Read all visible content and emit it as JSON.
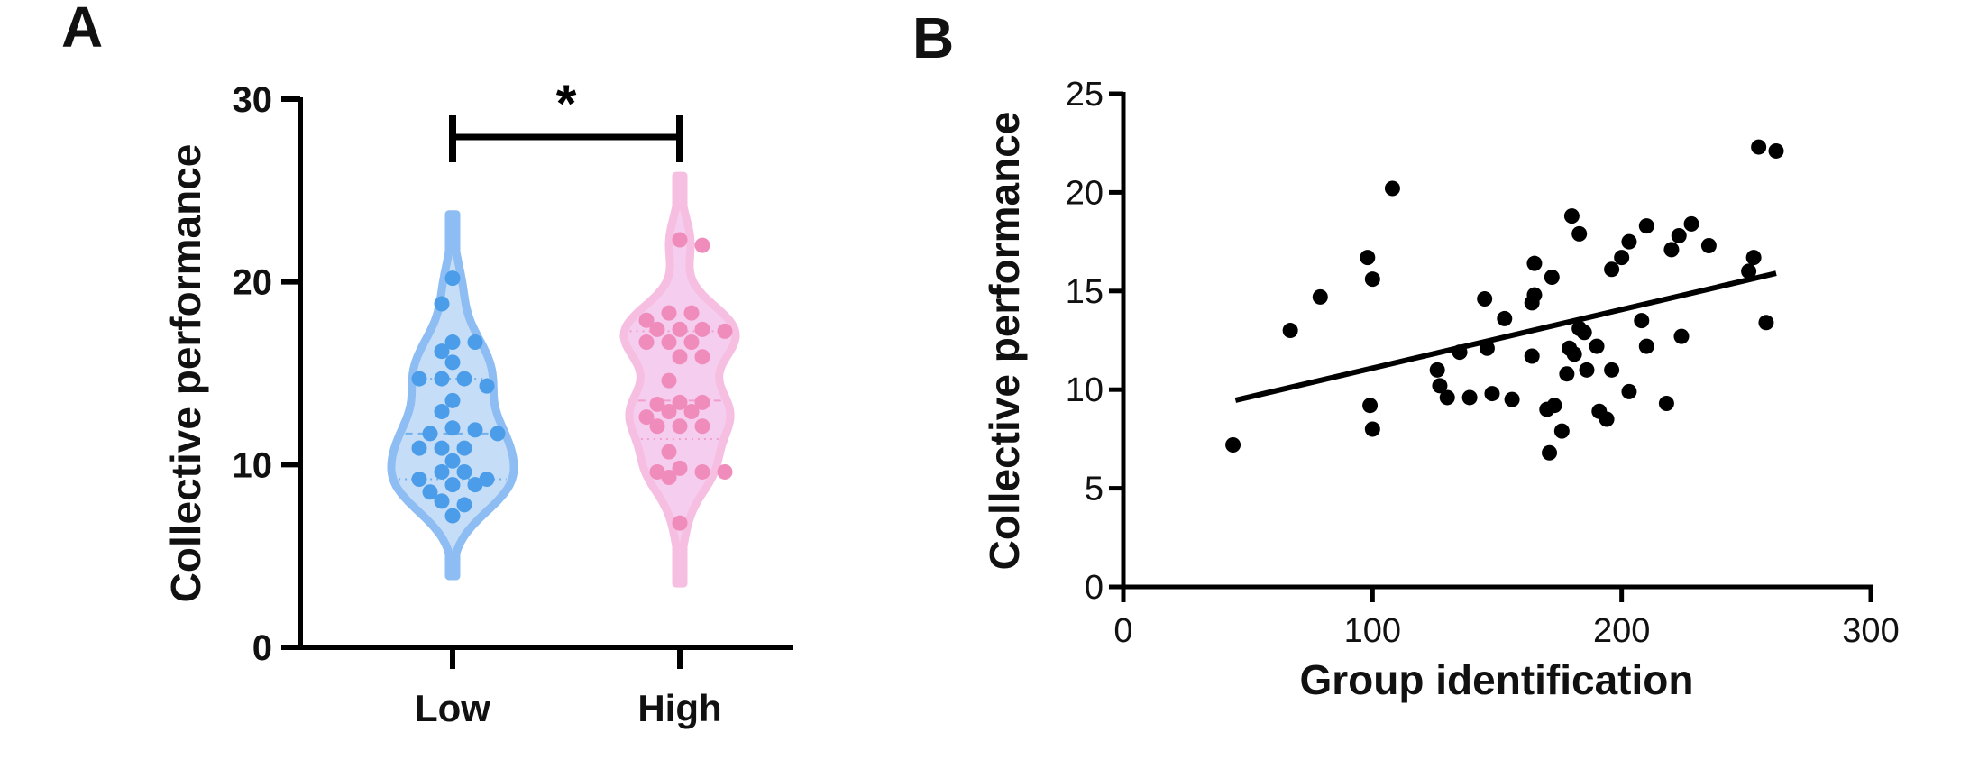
{
  "chart_data": [
    {
      "panel_label": "A",
      "type": "violin",
      "ylabel": "Collective performance",
      "xlabel": "",
      "ylim": [
        0,
        30
      ],
      "yticks": [
        "0",
        "10",
        "20",
        "30"
      ],
      "categories": [
        "Low",
        "High"
      ],
      "significance": {
        "between": [
          "Low",
          "High"
        ],
        "label": "*"
      },
      "colors": {
        "Low": {
          "fill": "#c6ddf8",
          "stroke": "#8dbdf2",
          "dot": "#4b9de9"
        },
        "High": {
          "fill": "#f5cdef",
          "stroke": "#f6bfe2",
          "dot": "#f08cbb"
        }
      },
      "series": [
        {
          "category": "Low",
          "values": [
            20.2,
            18.8,
            16.7,
            16.7,
            16.2,
            15.6,
            14.7,
            14.7,
            14.7,
            14.3,
            13.5,
            12.9,
            12.0,
            11.9,
            11.7,
            11.7,
            10.9,
            10.9,
            10.9,
            10.2,
            9.6,
            9.6,
            9.2,
            9.2,
            8.9,
            8.9,
            8.5,
            8.0,
            7.8,
            7.2
          ],
          "quartiles": [
            9.2,
            11.7,
            14.7
          ]
        },
        {
          "category": "High",
          "values": [
            22.3,
            22.0,
            18.3,
            18.3,
            17.9,
            17.4,
            17.4,
            17.4,
            17.3,
            16.7,
            16.7,
            16.7,
            15.9,
            15.9,
            14.6,
            13.4,
            13.4,
            13.3,
            12.9,
            12.9,
            12.6,
            12.1,
            12.1,
            12.1,
            10.7,
            9.8,
            9.6,
            9.6,
            9.6,
            9.3,
            6.8
          ],
          "quartiles": [
            11.4,
            13.5,
            17.3
          ]
        }
      ]
    },
    {
      "panel_label": "B",
      "type": "scatter",
      "xlabel": "Group identification",
      "ylabel": "Collective performance",
      "xlim": [
        0,
        300
      ],
      "ylim": [
        0,
        25
      ],
      "xticks": [
        "0",
        "100",
        "200",
        "300"
      ],
      "yticks": [
        "0",
        "5",
        "10",
        "15",
        "20",
        "25"
      ],
      "point_color": "#000000",
      "points": [
        [
          44,
          7.2
        ],
        [
          67,
          13.0
        ],
        [
          79,
          14.7
        ],
        [
          98,
          16.7
        ],
        [
          100,
          15.6
        ],
        [
          108,
          20.2
        ],
        [
          99,
          9.2
        ],
        [
          100,
          8.0
        ],
        [
          126,
          11.0
        ],
        [
          127,
          10.2
        ],
        [
          130,
          9.6
        ],
        [
          135,
          11.9
        ],
        [
          139,
          9.6
        ],
        [
          145,
          14.6
        ],
        [
          146,
          12.1
        ],
        [
          148,
          9.8
        ],
        [
          153,
          13.6
        ],
        [
          156,
          9.5
        ],
        [
          164,
          11.7
        ],
        [
          164,
          14.4
        ],
        [
          165,
          14.8
        ],
        [
          165,
          16.4
        ],
        [
          170,
          9.0
        ],
        [
          173,
          9.2
        ],
        [
          172,
          15.7
        ],
        [
          171,
          6.8
        ],
        [
          176,
          7.9
        ],
        [
          178,
          10.8
        ],
        [
          179,
          12.1
        ],
        [
          180,
          18.8
        ],
        [
          181,
          11.8
        ],
        [
          183,
          17.9
        ],
        [
          183,
          13.1
        ],
        [
          185,
          12.9
        ],
        [
          186,
          11.0
        ],
        [
          190,
          12.2
        ],
        [
          191,
          8.9
        ],
        [
          194,
          8.5
        ],
        [
          196,
          11.0
        ],
        [
          196,
          16.1
        ],
        [
          200,
          16.7
        ],
        [
          203,
          17.5
        ],
        [
          203,
          9.9
        ],
        [
          208,
          13.5
        ],
        [
          210,
          12.2
        ],
        [
          210,
          18.3
        ],
        [
          218,
          9.3
        ],
        [
          220,
          17.1
        ],
        [
          223,
          17.8
        ],
        [
          224,
          12.7
        ],
        [
          228,
          18.4
        ],
        [
          235,
          17.3
        ],
        [
          251,
          16.0
        ],
        [
          253,
          16.7
        ],
        [
          255,
          22.3
        ],
        [
          262,
          22.1
        ],
        [
          258,
          13.4
        ]
      ],
      "fit_line": {
        "x": [
          45,
          262
        ],
        "y": [
          9.46,
          15.9
        ]
      }
    }
  ]
}
